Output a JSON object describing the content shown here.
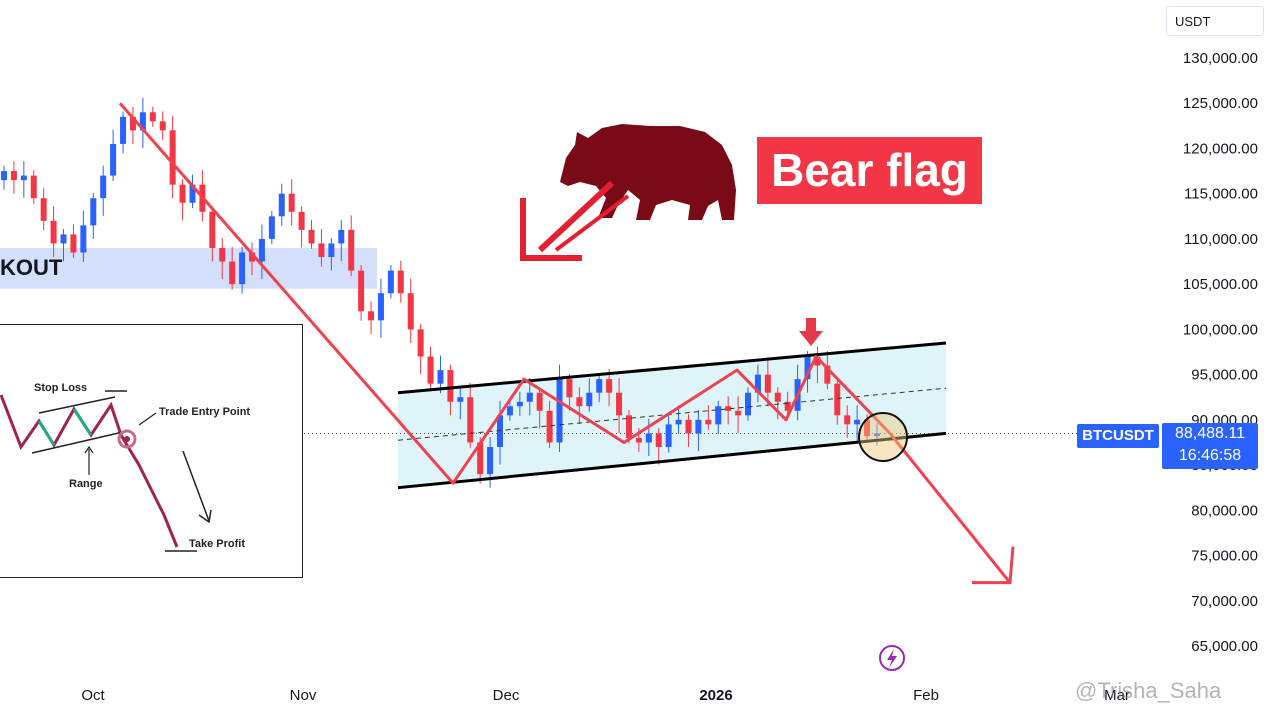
{
  "currency": "USDT",
  "symbol": "BTCUSDT",
  "last_price": "88,488.11",
  "countdown": "16:46:58",
  "annotation_title": "Bear flag",
  "breakout_label": "KOUT",
  "inset": {
    "stop_loss": "Stop Loss",
    "trade_entry": "Trade Entry Point",
    "range": "Range",
    "take_profit": "Take Profit"
  },
  "watermark": "@Trisha_Saha",
  "colors": {
    "up": "#2962ff",
    "down": "#f23645",
    "channel_fill": "#daf3f7",
    "breakout_zone": "#c9d7fb",
    "bear": "#7a0a16",
    "arrow": "#f0414e"
  },
  "chart_data": {
    "type": "candlestick",
    "symbol": "BTCUSDT",
    "ylim": [
      62000,
      134000
    ],
    "y_ticks": [
      130000,
      125000,
      120000,
      115000,
      110000,
      105000,
      100000,
      95000,
      90000,
      85000,
      80000,
      75000,
      70000,
      65000
    ],
    "y_tick_labels": [
      "130,000.00",
      "125,000.00",
      "120,000.00",
      "115,000.00",
      "110,000.00",
      "105,000.00",
      "100,000.00",
      "95,000.00",
      "90,000.00",
      "85,000.00",
      "80,000.00",
      "75,000.00",
      "70,000.00",
      "65,000.00"
    ],
    "x_ticks": [
      "Oct",
      "Nov",
      "Dec",
      "2026",
      "Feb",
      "Mar"
    ],
    "close_series": [
      117500,
      116500,
      117000,
      114500,
      112000,
      109500,
      110500,
      108500,
      111500,
      114500,
      117000,
      120500,
      123500,
      122000,
      124000,
      123000,
      122000,
      116000,
      114000,
      116000,
      113000,
      109000,
      107500,
      105000,
      108500,
      107500,
      110000,
      112500,
      115000,
      113000,
      111000,
      109500,
      108000,
      109500,
      111000,
      106500,
      102000,
      101000,
      104000,
      106500,
      104000,
      100000,
      97000,
      94000,
      95500,
      92000,
      92500,
      87500,
      84000,
      87000,
      90500,
      91500,
      92000,
      93000,
      91000,
      87500,
      94500,
      92500,
      91500,
      93000,
      94500,
      93000,
      90500,
      88000,
      87500,
      88500,
      87000,
      89500,
      90000,
      88500,
      90000,
      89500,
      91500,
      91000,
      90500,
      93000,
      95000,
      93000,
      92000,
      91000,
      94500,
      97000,
      96000,
      94000,
      90500,
      89500,
      90000,
      88200,
      88500
    ],
    "breakout_zone": [
      104500,
      109000
    ],
    "flag_channel": {
      "upper": [
        {
          "date": "mid-Nov",
          "price": 93000
        },
        {
          "date": "late-Jan",
          "price": 98500
        }
      ],
      "lower": [
        {
          "date": "mid-Nov",
          "price": 82500
        },
        {
          "date": "late-Jan",
          "price": 88500
        }
      ]
    },
    "projection": {
      "from": 97000,
      "to": 72000
    },
    "last_price": 88488.11
  }
}
